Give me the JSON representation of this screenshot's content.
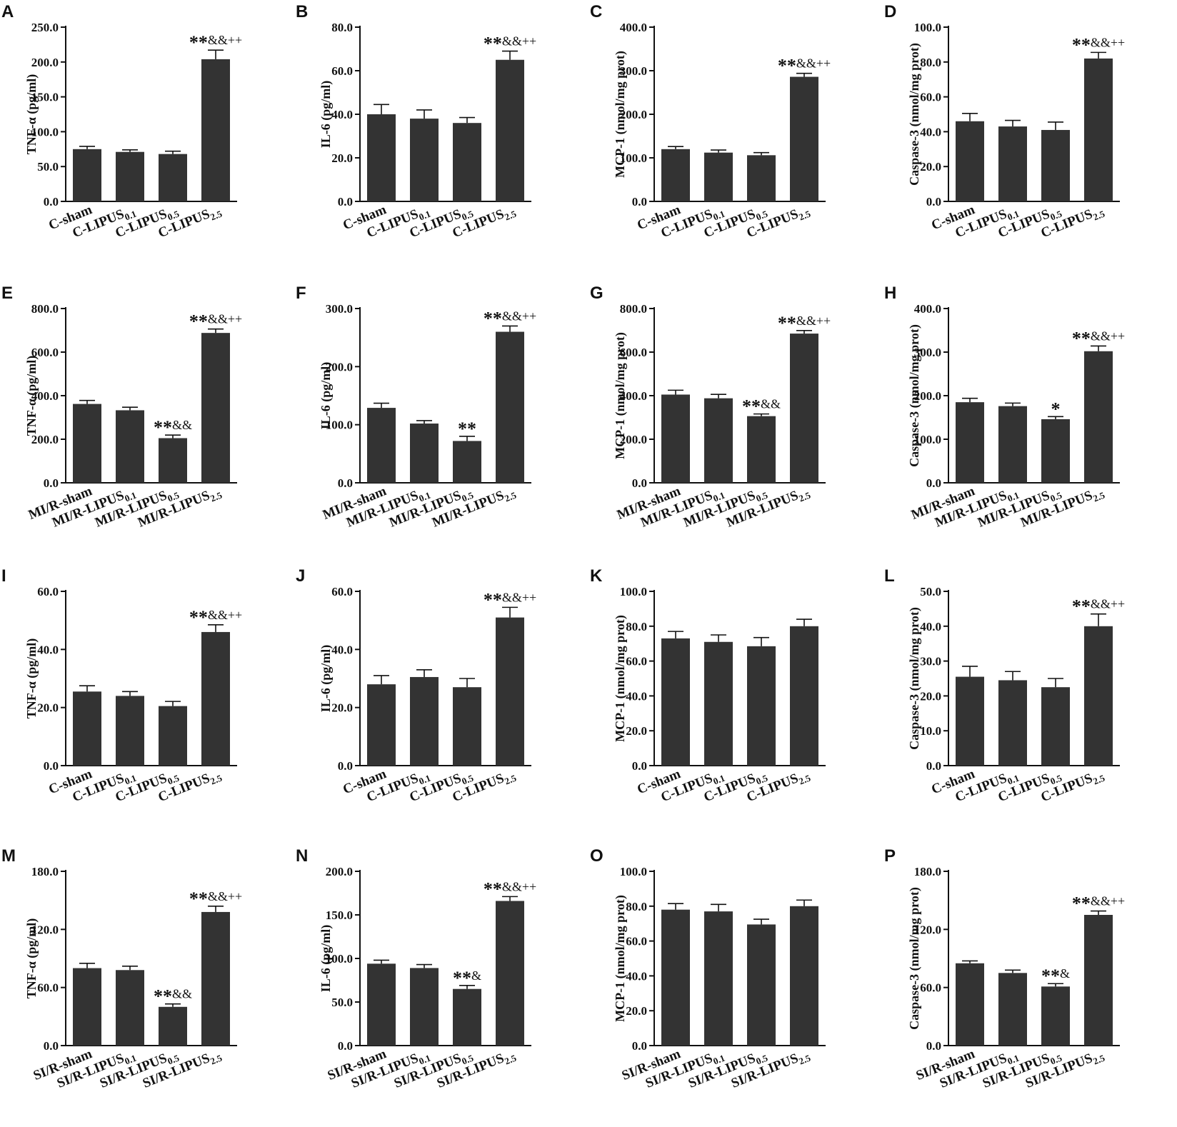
{
  "colors": {
    "bar": "#333333",
    "axis": "#111111",
    "background": "#ffffff"
  },
  "chart_data": [
    {
      "panel": "A",
      "type": "bar",
      "ylabel": "TNF-α (pg/ml)",
      "ylim": [
        0,
        250
      ],
      "yticks": [
        "0.0",
        "50.0",
        "100.0",
        "150.0",
        "200.0",
        "250.0"
      ],
      "categories": [
        {
          "base": "C-LIPUS",
          "sub": "",
          "text": "C-sham"
        },
        {
          "base": "C-LIPUS",
          "sub": "0.1"
        },
        {
          "base": "C-LIPUS",
          "sub": "0.5"
        },
        {
          "base": "C-LIPUS",
          "sub": "2.5"
        }
      ],
      "values": [
        75,
        71,
        68,
        204
      ],
      "errors": [
        4,
        3,
        4,
        13
      ],
      "annotations": [
        "",
        "",
        "",
        "**&&++"
      ]
    },
    {
      "panel": "B",
      "type": "bar",
      "ylabel": "IL-6 (pg/ml)",
      "ylim": [
        0,
        80
      ],
      "yticks": [
        "0.0",
        "20.0",
        "40.0",
        "60.0",
        "80.0"
      ],
      "categories": [
        {
          "text": "C-sham"
        },
        {
          "base": "C-LIPUS",
          "sub": "0.1"
        },
        {
          "base": "C-LIPUS",
          "sub": "0.5"
        },
        {
          "base": "C-LIPUS",
          "sub": "2.5"
        }
      ],
      "values": [
        40,
        38,
        36,
        65
      ],
      "errors": [
        4.5,
        4,
        2.5,
        4
      ],
      "annotations": [
        "",
        "",
        "",
        "**&&++"
      ]
    },
    {
      "panel": "C",
      "type": "bar",
      "ylabel": "MCP-1 (nmol/mg prot)",
      "ylim": [
        0,
        400
      ],
      "yticks": [
        "0.0",
        "100.0",
        "200.0",
        "300.0",
        "400.0"
      ],
      "categories": [
        {
          "text": "C-sham"
        },
        {
          "base": "C-LIPUS",
          "sub": "0.1"
        },
        {
          "base": "C-LIPUS",
          "sub": "0.5"
        },
        {
          "base": "C-LIPUS",
          "sub": "2.5"
        }
      ],
      "values": [
        120,
        112,
        106,
        286
      ],
      "errors": [
        6,
        6,
        6,
        8
      ],
      "annotations": [
        "",
        "",
        "",
        "**&&++"
      ]
    },
    {
      "panel": "D",
      "type": "bar",
      "ylabel": "Caspase-3 (nmol/mg prot)",
      "ylim": [
        0,
        100
      ],
      "yticks": [
        "0.0",
        "20.0",
        "40.0",
        "60.0",
        "80.0",
        "100.0"
      ],
      "categories": [
        {
          "text": "C-sham"
        },
        {
          "base": "C-LIPUS",
          "sub": "0.1"
        },
        {
          "base": "C-LIPUS",
          "sub": "0.5"
        },
        {
          "base": "C-LIPUS",
          "sub": "2.5"
        }
      ],
      "values": [
        46,
        43,
        41,
        82
      ],
      "errors": [
        4.5,
        3.5,
        4.5,
        3.5
      ],
      "annotations": [
        "",
        "",
        "",
        "**&&++"
      ]
    },
    {
      "panel": "E",
      "type": "bar",
      "ylabel": "TNF-α (pg/ml)",
      "ylim": [
        0,
        800
      ],
      "yticks": [
        "0.0",
        "200.0",
        "400.0",
        "600.0",
        "800.0"
      ],
      "categories": [
        {
          "text": "MI/R-sham"
        },
        {
          "base": "MI/R-LIPUS",
          "sub": "0.1"
        },
        {
          "base": "MI/R-LIPUS",
          "sub": "0.5"
        },
        {
          "base": "MI/R-LIPUS",
          "sub": "2.5"
        }
      ],
      "values": [
        362,
        333,
        205,
        688
      ],
      "errors": [
        16,
        14,
        14,
        18
      ],
      "annotations": [
        "",
        "",
        "**&&",
        "**&&++"
      ]
    },
    {
      "panel": "F",
      "type": "bar",
      "ylabel": "IL-6 (pg/ml)",
      "ylim": [
        0,
        300
      ],
      "yticks": [
        "0.0",
        "100.0",
        "200.0",
        "300.0"
      ],
      "categories": [
        {
          "text": "MI/R-sham"
        },
        {
          "base": "MI/R-LIPUS",
          "sub": "0.1"
        },
        {
          "base": "MI/R-LIPUS",
          "sub": "0.5"
        },
        {
          "base": "MI/R-LIPUS",
          "sub": "2.5"
        }
      ],
      "values": [
        129,
        102,
        72,
        260
      ],
      "errors": [
        8,
        5,
        8,
        10
      ],
      "annotations": [
        "",
        "",
        "**",
        "**&&++"
      ]
    },
    {
      "panel": "G",
      "type": "bar",
      "ylabel": "MCP-1 (nmol/mg prot)",
      "ylim": [
        0,
        800
      ],
      "yticks": [
        "0.0",
        "200.0",
        "400.0",
        "600.0",
        "800.0"
      ],
      "categories": [
        {
          "text": "MI/R-sham"
        },
        {
          "base": "MI/R-LIPUS",
          "sub": "0.1"
        },
        {
          "base": "MI/R-LIPUS",
          "sub": "0.5"
        },
        {
          "base": "MI/R-LIPUS",
          "sub": "2.5"
        }
      ],
      "values": [
        405,
        388,
        306,
        685
      ],
      "errors": [
        20,
        18,
        10,
        14
      ],
      "annotations": [
        "",
        "",
        "**&&",
        "**&&++"
      ]
    },
    {
      "panel": "H",
      "type": "bar",
      "ylabel": "Caspase-3 (nmol/mg prot)",
      "ylim": [
        0,
        400
      ],
      "yticks": [
        "0.0",
        "100.0",
        "200.0",
        "300.0",
        "400.0"
      ],
      "categories": [
        {
          "text": "MI/R-sham"
        },
        {
          "base": "MI/R-LIPUS",
          "sub": "0.1"
        },
        {
          "base": "MI/R-LIPUS",
          "sub": "0.5"
        },
        {
          "base": "MI/R-LIPUS",
          "sub": "2.5"
        }
      ],
      "values": [
        185,
        176,
        146,
        302
      ],
      "errors": [
        9,
        7,
        6,
        12
      ],
      "annotations": [
        "",
        "",
        "*",
        "**&&++"
      ]
    },
    {
      "panel": "I",
      "type": "bar",
      "ylabel": "TNF-α (pg/ml)",
      "ylim": [
        0,
        60
      ],
      "yticks": [
        "0.0",
        "20.0",
        "40.0",
        "60.0"
      ],
      "categories": [
        {
          "text": "C-sham"
        },
        {
          "base": "C-LIPUS",
          "sub": "0.1"
        },
        {
          "base": "C-LIPUS",
          "sub": "0.5"
        },
        {
          "base": "C-LIPUS",
          "sub": "2.5"
        }
      ],
      "values": [
        25.5,
        24,
        20.5,
        46
      ],
      "errors": [
        2,
        1.5,
        1.6,
        2.5
      ],
      "annotations": [
        "",
        "",
        "",
        "**&&++"
      ]
    },
    {
      "panel": "J",
      "type": "bar",
      "ylabel": "IL-6 (pg/ml)",
      "ylim": [
        0,
        60
      ],
      "yticks": [
        "0.0",
        "20.0",
        "40.0",
        "60.0"
      ],
      "categories": [
        {
          "text": "C-sham"
        },
        {
          "base": "C-LIPUS",
          "sub": "0.1"
        },
        {
          "base": "C-LIPUS",
          "sub": "0.5"
        },
        {
          "base": "C-LIPUS",
          "sub": "2.5"
        }
      ],
      "values": [
        28,
        30.5,
        27,
        51
      ],
      "errors": [
        3,
        2.5,
        3,
        3.5
      ],
      "annotations": [
        "",
        "",
        "",
        "**&&++"
      ]
    },
    {
      "panel": "K",
      "type": "bar",
      "ylabel": "MCP-1 (nmol/mg prot)",
      "ylim": [
        0,
        100
      ],
      "yticks": [
        "0.0",
        "20.0",
        "40.0",
        "60.0",
        "80.0",
        "100.0"
      ],
      "categories": [
        {
          "text": "C-sham"
        },
        {
          "base": "C-LIPUS",
          "sub": "0.1"
        },
        {
          "base": "C-LIPUS",
          "sub": "0.5"
        },
        {
          "base": "C-LIPUS",
          "sub": "2.5"
        }
      ],
      "values": [
        73,
        71,
        68.5,
        80
      ],
      "errors": [
        4,
        4,
        5,
        4
      ],
      "annotations": [
        "",
        "",
        "",
        ""
      ]
    },
    {
      "panel": "L",
      "type": "bar",
      "ylabel": "Caspase-3 (nmol/mg prot)",
      "ylim": [
        0,
        50
      ],
      "yticks": [
        "0.0",
        "10.0",
        "20.0",
        "30.0",
        "40.0",
        "50.0"
      ],
      "categories": [
        {
          "text": "C-sham"
        },
        {
          "base": "C-LIPUS",
          "sub": "0.1"
        },
        {
          "base": "C-LIPUS",
          "sub": "0.5"
        },
        {
          "base": "C-LIPUS",
          "sub": "2.5"
        }
      ],
      "values": [
        25.5,
        24.5,
        22.5,
        40
      ],
      "errors": [
        3,
        2.5,
        2.5,
        3.5
      ],
      "annotations": [
        "",
        "",
        "",
        "**&&++"
      ]
    },
    {
      "panel": "M",
      "type": "bar",
      "ylabel": "TNF-α (pg/ml)",
      "ylim": [
        0,
        180
      ],
      "yticks": [
        "0.0",
        "60.0",
        "120.0",
        "180.0"
      ],
      "categories": [
        {
          "text": "SI/R-sham"
        },
        {
          "base": "SI/R-LIPUS",
          "sub": "0.1"
        },
        {
          "base": "SI/R-LIPUS",
          "sub": "0.5"
        },
        {
          "base": "SI/R-LIPUS",
          "sub": "2.5"
        }
      ],
      "values": [
        80,
        78,
        40,
        138
      ],
      "errors": [
        5,
        4,
        3,
        6
      ],
      "annotations": [
        "",
        "",
        "**&&",
        "**&&++"
      ]
    },
    {
      "panel": "N",
      "type": "bar",
      "ylabel": "IL-6 (pg/ml)",
      "ylim": [
        0,
        200
      ],
      "yticks": [
        "0.0",
        "50.0",
        "100.0",
        "150.0",
        "200.0"
      ],
      "categories": [
        {
          "text": "SI/R-sham"
        },
        {
          "base": "SI/R-LIPUS",
          "sub": "0.1"
        },
        {
          "base": "SI/R-LIPUS",
          "sub": "0.5"
        },
        {
          "base": "SI/R-LIPUS",
          "sub": "2.5"
        }
      ],
      "values": [
        94,
        89,
        65,
        166
      ],
      "errors": [
        4,
        4,
        4,
        5
      ],
      "annotations": [
        "",
        "",
        "**&",
        "**&&++"
      ]
    },
    {
      "panel": "O",
      "type": "bar",
      "ylabel": "MCP-1 (nmol/mg prot)",
      "ylim": [
        0,
        100
      ],
      "yticks": [
        "0.0",
        "20.0",
        "40.0",
        "60.0",
        "80.0",
        "100.0"
      ],
      "categories": [
        {
          "text": "SI/R-sham"
        },
        {
          "base": "SI/R-LIPUS",
          "sub": "0.1"
        },
        {
          "base": "SI/R-LIPUS",
          "sub": "0.5"
        },
        {
          "base": "SI/R-LIPUS",
          "sub": "2.5"
        }
      ],
      "values": [
        78,
        77,
        69.5,
        80
      ],
      "errors": [
        3.5,
        4,
        3,
        3.5
      ],
      "annotations": [
        "",
        "",
        "",
        ""
      ]
    },
    {
      "panel": "P",
      "type": "bar",
      "ylabel": "Caspase-3 (nmol/mg prot)",
      "ylim": [
        0,
        180
      ],
      "yticks": [
        "0.0",
        "60.0",
        "120.0",
        "180.0"
      ],
      "categories": [
        {
          "text": "SI/R-sham"
        },
        {
          "base": "SI/R-LIPUS",
          "sub": "0.1"
        },
        {
          "base": "SI/R-LIPUS",
          "sub": "0.5"
        },
        {
          "base": "SI/R-LIPUS",
          "sub": "2.5"
        }
      ],
      "values": [
        85,
        75,
        61,
        135
      ],
      "errors": [
        2.5,
        3,
        3,
        4
      ],
      "annotations": [
        "",
        "",
        "**&",
        "**&&++"
      ]
    }
  ]
}
